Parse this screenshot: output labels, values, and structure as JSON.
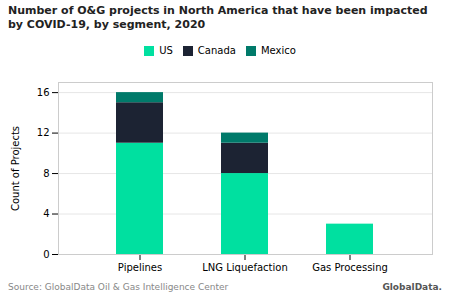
{
  "chart_data": {
    "type": "bar",
    "stacked": true,
    "title": "Number of O&G projects in North America that have been impacted by COVID-19, by segment, 2020",
    "categories": [
      "Pipelines",
      "LNG Liquefaction",
      "Gas Processing"
    ],
    "series": [
      {
        "name": "US",
        "color": "#00E0A0",
        "values": [
          11,
          8,
          3
        ]
      },
      {
        "name": "Canada",
        "color": "#1C2333",
        "values": [
          4,
          3,
          0
        ]
      },
      {
        "name": "Mexico",
        "color": "#007A6A",
        "values": [
          1,
          1,
          0
        ]
      }
    ],
    "ylabel": "Count of Projects",
    "ylim": [
      0,
      17
    ],
    "yticks": [
      0,
      4,
      8,
      12,
      16
    ],
    "grid": true,
    "legend": "top",
    "annotations": [
      "Source: GlobalData Oil & Gas Intelligence Center",
      "GlobalData."
    ]
  }
}
